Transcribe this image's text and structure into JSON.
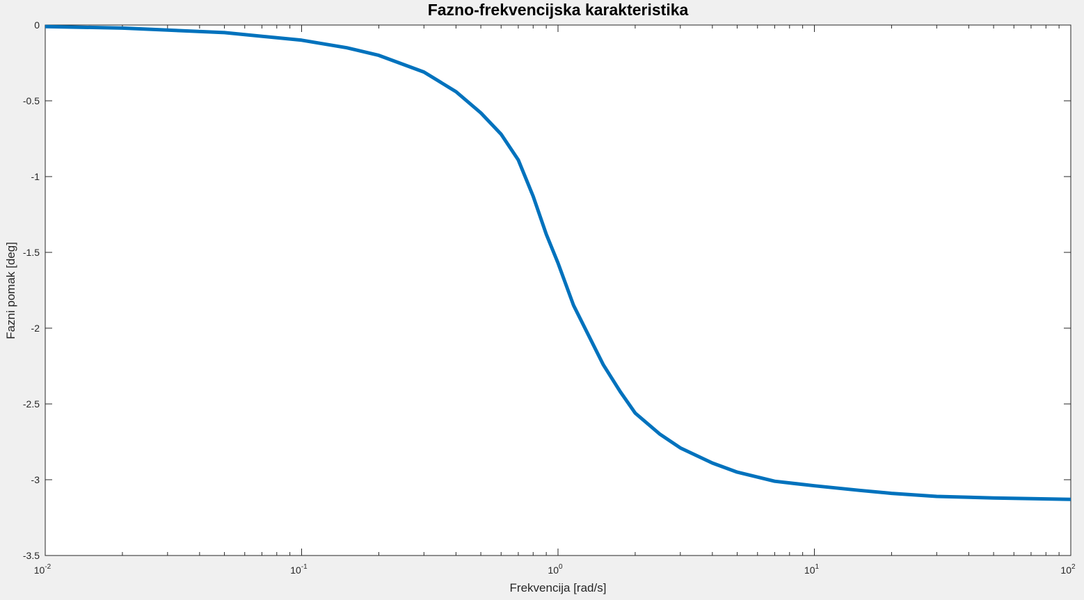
{
  "chart_data": {
    "type": "line",
    "title": "Fazno-frekvencijska karakteristika",
    "xlabel": "Frekvencija [rad/s]",
    "ylabel": "Fazni pomak [deg]",
    "xscale": "log",
    "xlim": [
      0.01,
      100
    ],
    "ylim": [
      -3.5,
      0
    ],
    "grid": false,
    "x_ticks": [
      {
        "base": "10",
        "exp": "-2",
        "value": 0.01
      },
      {
        "base": "10",
        "exp": "-1",
        "value": 0.1
      },
      {
        "base": "10",
        "exp": "0",
        "value": 1
      },
      {
        "base": "10",
        "exp": "1",
        "value": 10
      },
      {
        "base": "10",
        "exp": "2",
        "value": 100
      }
    ],
    "y_ticks": [
      "0",
      "-0.5",
      "-1",
      "-1.5",
      "-2",
      "-2.5",
      "-3",
      "-3.5"
    ],
    "series": [
      {
        "color": "#0072bd",
        "x": [
          0.01,
          0.02,
          0.05,
          0.1,
          0.15,
          0.2,
          0.3,
          0.4,
          0.5,
          0.6,
          0.7,
          0.8,
          0.9,
          1.0,
          1.15,
          1.3,
          1.5,
          1.75,
          2.0,
          2.5,
          3.0,
          4.0,
          5.0,
          7.0,
          10.0,
          15.0,
          20.0,
          30.0,
          50.0,
          100.0
        ],
        "y": [
          -0.01,
          -0.02,
          -0.05,
          -0.1,
          -0.15,
          -0.2,
          -0.31,
          -0.44,
          -0.58,
          -0.72,
          -0.89,
          -1.13,
          -1.38,
          -1.57,
          -1.85,
          -2.03,
          -2.24,
          -2.42,
          -2.56,
          -2.7,
          -2.79,
          -2.89,
          -2.95,
          -3.01,
          -3.04,
          -3.07,
          -3.09,
          -3.11,
          -3.12,
          -3.13
        ]
      }
    ]
  }
}
